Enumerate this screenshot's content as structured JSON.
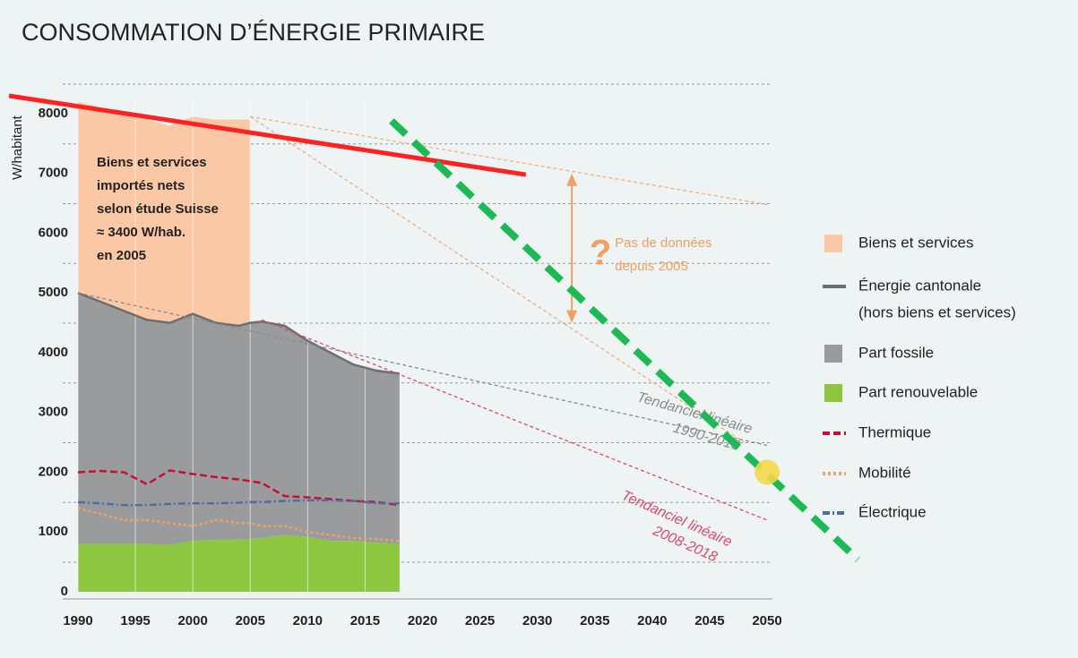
{
  "chart_data": {
    "type": "stacked-area-line",
    "title": "CONSOMMATION D’ÉNERGIE PRIMAIRE",
    "y_label": "W/habitant",
    "xlim": [
      1990,
      2050
    ],
    "xticks": [
      1990,
      1995,
      2000,
      2005,
      2010,
      2015,
      2020,
      2025,
      2030,
      2035,
      2040,
      2045,
      2050
    ],
    "ylim": [
      0,
      8500
    ],
    "yticks": [
      0,
      1000,
      2000,
      3000,
      4000,
      5000,
      6000,
      7000,
      8000
    ],
    "grid": true,
    "legend": "right",
    "x": [
      1990,
      1992,
      1994,
      1996,
      1998,
      2000,
      2002,
      2004,
      2005,
      2006,
      2008,
      2010,
      2012,
      2014,
      2016,
      2018
    ],
    "series": [
      {
        "name": "Biens et services",
        "kind": "area",
        "stack": true,
        "color": "#fbc8a6",
        "values": [
          3200,
          3250,
          3300,
          3350,
          3300,
          3300,
          3400,
          3450,
          3400,
          null,
          null,
          null,
          null,
          null,
          null,
          null
        ]
      },
      {
        "name": "Énergie cantonale",
        "note": "(hors biens et services)",
        "kind": "line",
        "color": "#6d6e70",
        "values": [
          5000,
          4850,
          4700,
          4550,
          4500,
          4650,
          4500,
          4450,
          4500,
          4520,
          4450,
          4200,
          4000,
          3800,
          3700,
          3650
        ]
      },
      {
        "name": "Part fossile",
        "kind": "area",
        "stack": true,
        "color": "#9a9b9d",
        "values": [
          4200,
          4050,
          3900,
          3750,
          3720,
          3800,
          3630,
          3580,
          3620,
          3620,
          3500,
          3280,
          3150,
          2950,
          2880,
          2850
        ]
      },
      {
        "name": "Part renouvelable",
        "kind": "area",
        "stack": true,
        "color": "#8dc63f",
        "values": [
          800,
          800,
          800,
          800,
          780,
          850,
          870,
          870,
          880,
          900,
          950,
          920,
          850,
          850,
          820,
          800
        ]
      },
      {
        "name": "Thermique",
        "kind": "line",
        "dash": "8 4",
        "color": "#c8102e",
        "values": [
          2000,
          2020,
          2000,
          1800,
          2030,
          1970,
          1920,
          1880,
          1850,
          1820,
          1600,
          1580,
          1550,
          1520,
          1500,
          1450
        ]
      },
      {
        "name": "Mobilité",
        "kind": "line",
        "dash": "3 3",
        "color": "#f0a060",
        "values": [
          1400,
          1300,
          1200,
          1200,
          1150,
          1100,
          1200,
          1150,
          1150,
          1100,
          1100,
          1000,
          950,
          900,
          880,
          850
        ]
      },
      {
        "name": "Électrique",
        "kind": "line",
        "dash": "8 3 2 3",
        "color": "#4a6fa5",
        "values": [
          1500,
          1480,
          1450,
          1450,
          1470,
          1480,
          1480,
          1490,
          1500,
          1500,
          1520,
          1530,
          1530,
          1520,
          1480,
          1480
        ]
      }
    ],
    "trends": [
      {
        "x": [
          2005,
          2050
        ],
        "values": [
          7950,
          6480
        ],
        "color": "#f0b080"
      },
      {
        "x": [
          2005,
          2048
        ],
        "values": [
          7950,
          2500
        ],
        "color": "#f0b080"
      },
      {
        "x": [
          1990,
          2050
        ],
        "values": [
          5000,
          2450
        ],
        "color": "#8a8b8d",
        "label": [
          "Tendanciel linéaire",
          "1990-2018"
        ]
      },
      {
        "x": [
          2006,
          2050
        ],
        "values": [
          4550,
          1200
        ],
        "color": "#e0486a",
        "label": [
          "Tendanciel linéaire",
          "2008-2018"
        ]
      }
    ],
    "box_text": [
      "Biens et services",
      "importés nets",
      "selon étude Suisse",
      "≈ 3400 W/hab.",
      "en 2005"
    ],
    "gap": {
      "x": 2033,
      "from": 7000,
      "to": 4500,
      "symbol": "?",
      "text": [
        "Pas de données",
        "depuis 2005"
      ],
      "color": "#f0a060"
    },
    "overlays": [
      {
        "x": [
          1984,
          2029
        ],
        "values": [
          8300,
          6980
        ],
        "color": "#ff2020",
        "dash": "none"
      },
      {
        "x": [
          2017.3,
          2057.9
        ],
        "values": [
          7880,
          540
        ],
        "color": "#1db954",
        "dash": "22 12"
      }
    ],
    "point": {
      "x": 2050,
      "value": 2000,
      "color": "#f5d84a"
    }
  }
}
